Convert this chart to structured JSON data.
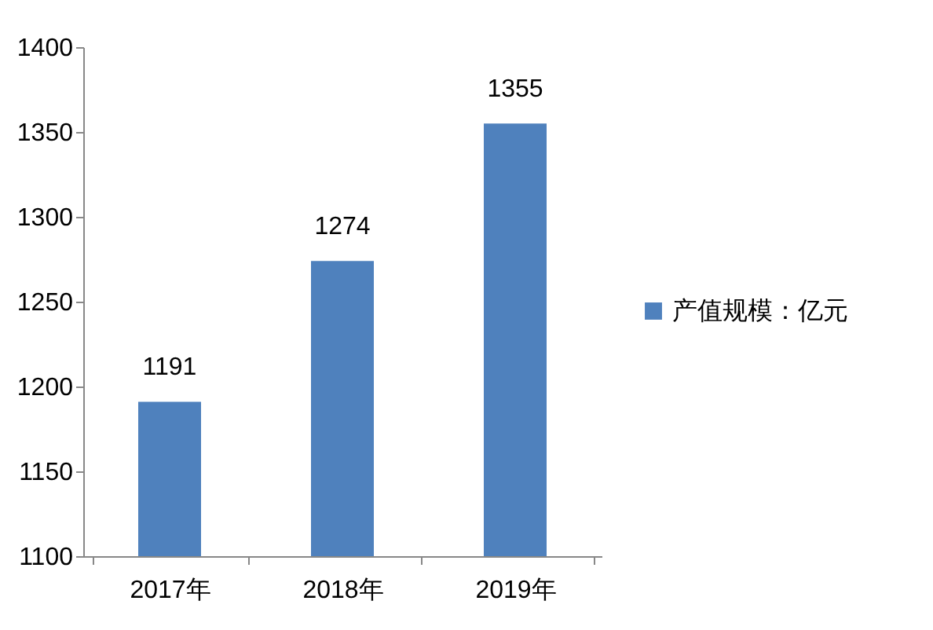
{
  "chart_data": {
    "type": "bar",
    "categories": [
      "2017年",
      "2018年",
      "2019年"
    ],
    "series": [
      {
        "name": "产值规模：亿元",
        "color": "#4f81bd",
        "values": [
          1191,
          1274,
          1355
        ]
      }
    ],
    "ylim": [
      1100,
      1400
    ],
    "yticks": [
      1100,
      1150,
      1200,
      1250,
      1300,
      1350,
      1400
    ],
    "data_labels": true,
    "legend": "right",
    "grid": false
  }
}
